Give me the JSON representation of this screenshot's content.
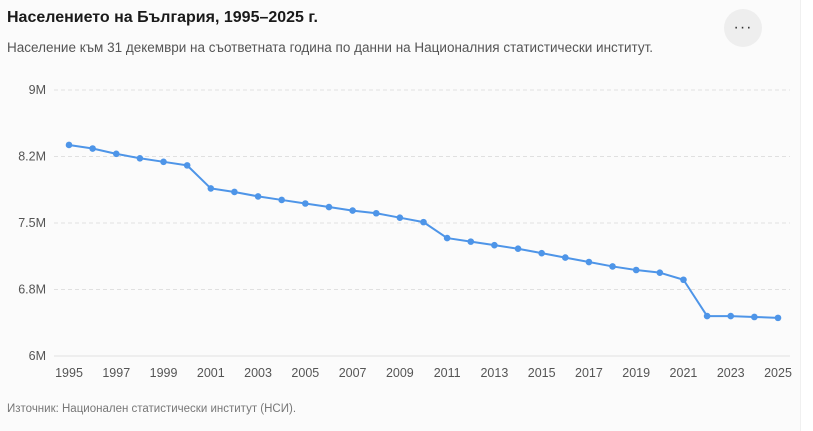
{
  "header": {
    "title": "Населението на България, 1995–2025 г.",
    "subtitle": "Население към 31 декември на съответната година по данни на Националния статистически институт.",
    "more_label": "···"
  },
  "footer": {
    "source": "Източник: Национален статистически институт (НСИ)."
  },
  "colors": {
    "line": "#4e95e8",
    "grid": "#e0e0e0"
  },
  "chart_data": {
    "type": "line",
    "x": [
      1995,
      1996,
      1997,
      1998,
      1999,
      2000,
      2001,
      2002,
      2003,
      2004,
      2005,
      2006,
      2007,
      2008,
      2009,
      2010,
      2011,
      2012,
      2013,
      2014,
      2015,
      2016,
      2017,
      2018,
      2019,
      2020,
      2021,
      2022,
      2023,
      2024,
      2025
    ],
    "series": [
      {
        "values": [
          8.38,
          8.34,
          8.28,
          8.23,
          8.19,
          8.15,
          7.89,
          7.85,
          7.8,
          7.76,
          7.72,
          7.68,
          7.64,
          7.61,
          7.56,
          7.51,
          7.33,
          7.29,
          7.25,
          7.21,
          7.16,
          7.11,
          7.06,
          7.01,
          6.97,
          6.94,
          6.86,
          6.45,
          6.45,
          6.44,
          6.43
        ]
      }
    ],
    "ylim": [
      6,
      9
    ],
    "y_ticks": [
      {
        "value": 6,
        "label": "6M"
      },
      {
        "value": 6.75,
        "label": "6.8M"
      },
      {
        "value": 7.5,
        "label": "7.5M"
      },
      {
        "value": 8.25,
        "label": "8.2M"
      },
      {
        "value": 9,
        "label": "9M"
      }
    ],
    "x_ticks": [
      1995,
      1997,
      1999,
      2001,
      2003,
      2005,
      2007,
      2009,
      2011,
      2013,
      2015,
      2017,
      2019,
      2021,
      2023,
      2025
    ],
    "grid": true
  }
}
